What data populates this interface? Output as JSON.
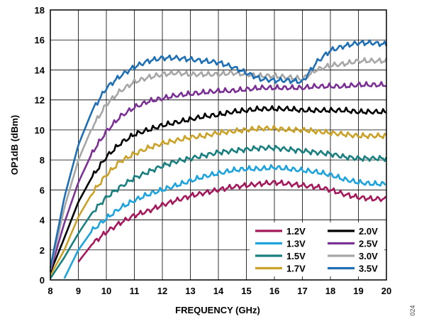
{
  "figure_id": "024",
  "chart_data": {
    "type": "line",
    "title": "",
    "xlabel": "FREQUENCY (GHz)",
    "ylabel": "OP1dB (dBm)",
    "xlim": [
      8,
      20
    ],
    "ylim": [
      0,
      18
    ],
    "xticks": [
      8,
      9,
      10,
      11,
      12,
      13,
      14,
      15,
      16,
      17,
      18,
      19,
      20
    ],
    "yticks": [
      0,
      2,
      4,
      6,
      8,
      10,
      12,
      14,
      16,
      18
    ],
    "grid": true,
    "legend_position": "bottom-right",
    "legend_columns": 2,
    "x": [
      8.0,
      8.5,
      9.0,
      9.5,
      10.0,
      10.5,
      11.0,
      11.5,
      12.0,
      12.5,
      13.0,
      13.5,
      14.0,
      14.5,
      15.0,
      15.5,
      16.0,
      16.5,
      17.0,
      17.5,
      18.0,
      18.5,
      19.0,
      19.5,
      20.0
    ],
    "series": [
      {
        "name": "1.2V",
        "color": "#a3195b",
        "values": [
          null,
          null,
          1.2,
          2.4,
          3.2,
          3.8,
          4.3,
          4.6,
          5.0,
          5.3,
          5.6,
          5.8,
          6.0,
          6.2,
          6.3,
          6.4,
          6.5,
          6.4,
          6.3,
          6.2,
          6.0,
          5.7,
          5.5,
          5.4,
          5.4
        ]
      },
      {
        "name": "1.3V",
        "color": "#1fa3dc",
        "values": [
          null,
          0.1,
          2.0,
          3.3,
          4.1,
          4.8,
          5.3,
          5.7,
          6.0,
          6.3,
          6.6,
          6.9,
          7.1,
          7.3,
          7.4,
          7.4,
          7.5,
          7.4,
          7.3,
          7.2,
          7.0,
          6.7,
          6.5,
          6.4,
          6.4
        ]
      },
      {
        "name": "1.5V",
        "color": "#1a7f7f",
        "values": [
          0.1,
          1.5,
          3.1,
          4.5,
          5.5,
          6.2,
          6.8,
          7.2,
          7.6,
          7.9,
          8.1,
          8.3,
          8.5,
          8.6,
          8.7,
          8.8,
          8.8,
          8.7,
          8.6,
          8.5,
          8.4,
          8.2,
          8.1,
          8.1,
          8.1
        ]
      },
      {
        "name": "1.7V",
        "color": "#c9a227",
        "values": [
          0.3,
          2.0,
          4.2,
          5.8,
          7.0,
          7.9,
          8.4,
          8.8,
          9.1,
          9.3,
          9.5,
          9.6,
          9.8,
          9.9,
          10.0,
          10.1,
          10.1,
          10.0,
          10.0,
          9.9,
          9.8,
          9.7,
          9.6,
          9.6,
          9.6
        ]
      },
      {
        "name": "2.0V",
        "color": "#000000",
        "values": [
          0.5,
          2.8,
          5.2,
          6.9,
          8.2,
          9.1,
          9.7,
          10.0,
          10.3,
          10.5,
          10.7,
          10.9,
          11.0,
          11.2,
          11.3,
          11.4,
          11.4,
          11.4,
          11.3,
          11.3,
          11.3,
          11.3,
          11.2,
          11.2,
          11.2
        ]
      },
      {
        "name": "2.5V",
        "color": "#7b3294",
        "values": [
          0.6,
          3.8,
          6.5,
          8.5,
          9.9,
          10.9,
          11.5,
          11.9,
          12.1,
          12.3,
          12.4,
          12.5,
          12.6,
          12.6,
          12.7,
          12.8,
          12.8,
          12.8,
          12.8,
          12.9,
          12.9,
          12.9,
          13.0,
          13.0,
          13.0
        ]
      },
      {
        "name": "3.0V",
        "color": "#a6a6a6",
        "values": [
          0.7,
          4.8,
          8.0,
          10.2,
          11.7,
          12.6,
          13.2,
          13.5,
          13.7,
          13.8,
          13.7,
          13.7,
          13.7,
          13.8,
          13.7,
          13.6,
          13.6,
          13.5,
          13.4,
          14.0,
          14.3,
          14.4,
          14.6,
          14.6,
          14.6
        ]
      },
      {
        "name": "3.5V",
        "color": "#1f6fb4",
        "values": [
          0.8,
          5.5,
          9.0,
          11.3,
          12.8,
          13.6,
          14.2,
          14.6,
          14.8,
          14.8,
          14.7,
          14.6,
          14.5,
          14.2,
          13.8,
          13.4,
          13.3,
          13.3,
          13.2,
          14.5,
          15.3,
          15.6,
          15.8,
          15.8,
          15.7
        ]
      }
    ]
  }
}
